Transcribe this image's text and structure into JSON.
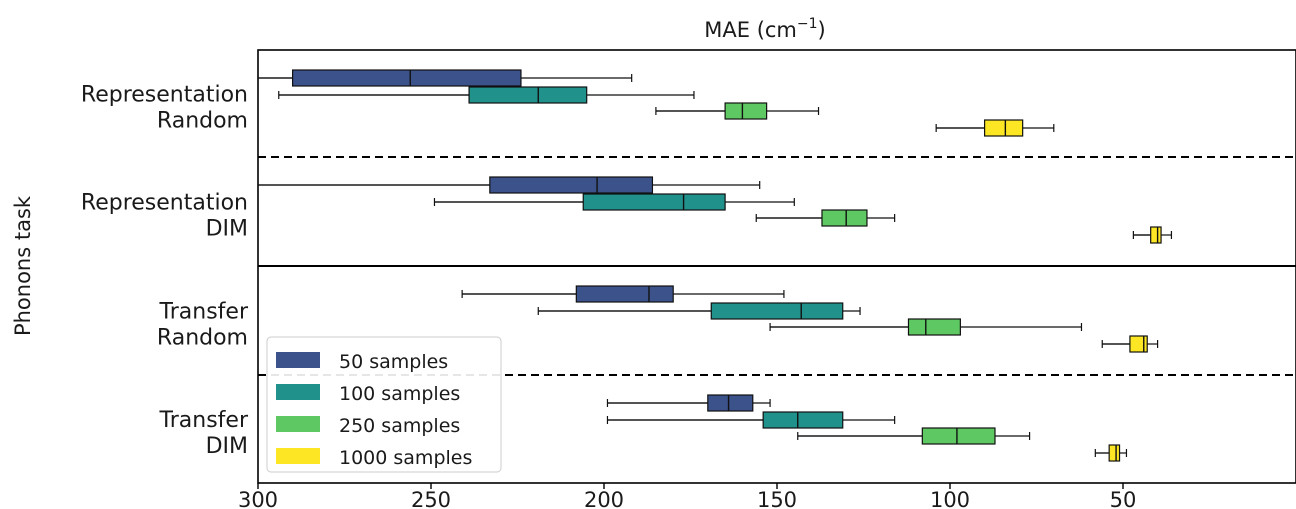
{
  "chart_data": {
    "type": "boxplot",
    "title": "MAE (cm⁻¹)",
    "title_main": "MAE (cm",
    "title_sup": "−1",
    "title_end": ")",
    "ylabel": "Phonons task",
    "xlim": [
      300,
      0
    ],
    "x_inverted": true,
    "x_ticks": [
      300,
      250,
      200,
      150,
      100,
      50
    ],
    "legend_position": "lower-left",
    "groups": [
      {
        "label_line1": "Representation",
        "label_line2": "Random"
      },
      {
        "label_line1": "Representation",
        "label_line2": "DIM"
      },
      {
        "label_line1": "Transfer",
        "label_line2": "Random"
      },
      {
        "label_line1": "Transfer",
        "label_line2": "DIM"
      }
    ],
    "separators": [
      {
        "after_group": 0,
        "style": "dashed"
      },
      {
        "after_group": 1,
        "style": "solid"
      },
      {
        "after_group": 2,
        "style": "dashed"
      }
    ],
    "series": [
      {
        "name": "50 samples",
        "color": "#3b528b"
      },
      {
        "name": "100 samples",
        "color": "#21918c"
      },
      {
        "name": "250 samples",
        "color": "#5ec962"
      },
      {
        "name": "1000 samples",
        "color": "#fde725"
      }
    ],
    "boxes": [
      [
        {
          "whislo": 192,
          "q1": 224,
          "med": 256,
          "q3": 290,
          "whishi": 300
        },
        {
          "whislo": 174,
          "q1": 205,
          "med": 219,
          "q3": 239,
          "whishi": 294
        },
        {
          "whislo": 138,
          "q1": 153,
          "med": 160,
          "q3": 165,
          "whishi": 185
        },
        {
          "whislo": 70,
          "q1": 79,
          "med": 84,
          "q3": 90,
          "whishi": 104
        }
      ],
      [
        {
          "whislo": 155,
          "q1": 186,
          "med": 202,
          "q3": 233,
          "whishi": 300
        },
        {
          "whislo": 145,
          "q1": 165,
          "med": 177,
          "q3": 206,
          "whishi": 249
        },
        {
          "whislo": 116,
          "q1": 124,
          "med": 130,
          "q3": 137,
          "whishi": 156
        },
        {
          "whislo": 36,
          "q1": 39,
          "med": 40,
          "q3": 42,
          "whishi": 47
        }
      ],
      [
        {
          "whislo": 148,
          "q1": 180,
          "med": 187,
          "q3": 208,
          "whishi": 241
        },
        {
          "whislo": 126,
          "q1": 131,
          "med": 143,
          "q3": 169,
          "whishi": 219
        },
        {
          "whislo": 62,
          "q1": 97,
          "med": 107,
          "q3": 112,
          "whishi": 152
        },
        {
          "whislo": 40,
          "q1": 43,
          "med": 44,
          "q3": 48,
          "whishi": 56
        }
      ],
      [
        {
          "whislo": 152,
          "q1": 157,
          "med": 164,
          "q3": 170,
          "whishi": 199
        },
        {
          "whislo": 116,
          "q1": 131,
          "med": 144,
          "q3": 154,
          "whishi": 199
        },
        {
          "whislo": 77,
          "q1": 87,
          "med": 98,
          "q3": 108,
          "whishi": 144
        },
        {
          "whislo": 49,
          "q1": 51,
          "med": 52,
          "q3": 54,
          "whishi": 58
        }
      ]
    ]
  }
}
